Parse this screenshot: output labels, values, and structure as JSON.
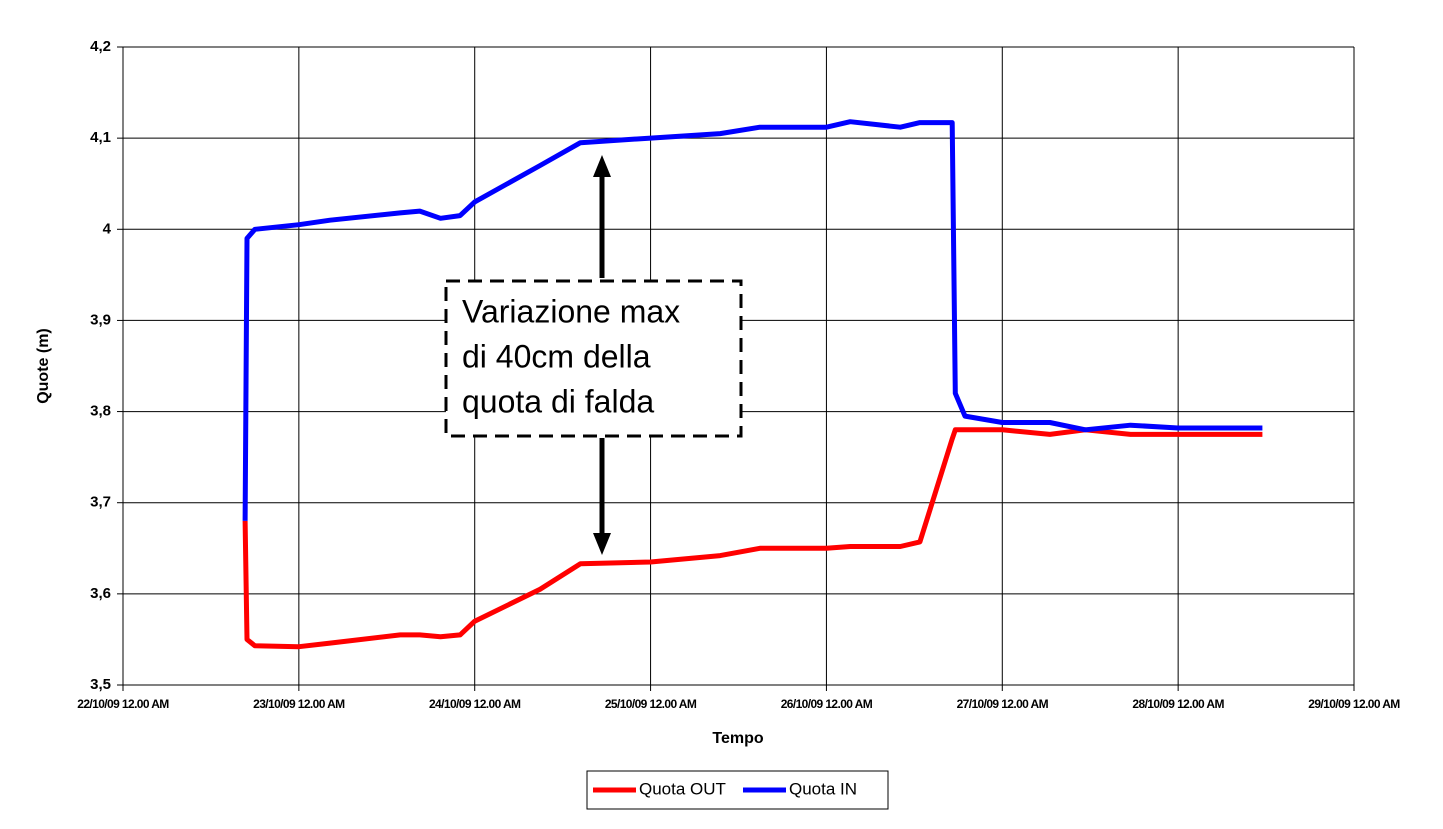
{
  "chart_data": {
    "type": "line",
    "x_label": "Tempo",
    "y_label": "Quote (m)",
    "annotation": [
      "Variazione max",
      "di 40cm della",
      "quota di falda"
    ],
    "x": [
      "2009-10-22T16:40",
      "2009-10-22T16:55",
      "2009-10-22T18:00",
      "2009-10-23T00:00",
      "2009-10-23T04:15",
      "2009-10-23T13:50",
      "2009-10-23T16:30",
      "2009-10-23T19:20",
      "2009-10-23T22:00",
      "2009-10-24T00:00",
      "2009-10-24T08:55",
      "2009-10-24T14:25",
      "2009-10-25T00:00",
      "2009-10-25T09:30",
      "2009-10-25T14:55",
      "2009-10-26T00:00",
      "2009-10-26T03:15",
      "2009-10-26T10:05",
      "2009-10-26T12:45",
      "2009-10-26T17:10",
      "2009-10-26T17:35",
      "2009-10-26T18:55",
      "2009-10-27T00:00",
      "2009-10-27T06:30",
      "2009-10-27T11:20",
      "2009-10-27T17:30",
      "2009-10-28T00:00",
      "2009-10-28T11:30"
    ],
    "series": [
      {
        "name": "Quota OUT",
        "color": "#ff0000",
        "values": [
          3.68,
          3.55,
          3.543,
          3.542,
          3.546,
          3.555,
          3.555,
          3.553,
          3.555,
          3.57,
          3.605,
          3.633,
          3.635,
          3.642,
          3.65,
          3.65,
          3.652,
          3.652,
          3.657,
          3.77,
          3.78,
          3.78,
          3.78,
          3.775,
          3.78,
          3.775,
          3.775,
          3.775
        ]
      },
      {
        "name": "Quota IN",
        "color": "#0000ff",
        "values": [
          3.68,
          3.99,
          4.0,
          4.005,
          4.01,
          4.018,
          4.02,
          4.012,
          4.015,
          4.03,
          4.07,
          4.095,
          4.1,
          4.105,
          4.112,
          4.112,
          4.118,
          4.112,
          4.117,
          4.117,
          3.82,
          3.795,
          3.788,
          3.788,
          3.78,
          3.785,
          3.782,
          3.782
        ]
      }
    ],
    "xlim": [
      "2009-10-22T00:00",
      "2009-10-29T00:00"
    ],
    "xticks": [
      {
        "value": "2009-10-22T00:00",
        "label": "22/10/09 12.00 AM"
      },
      {
        "value": "2009-10-23T00:00",
        "label": "23/10/09 12.00 AM"
      },
      {
        "value": "2009-10-24T00:00",
        "label": "24/10/09 12.00 AM"
      },
      {
        "value": "2009-10-25T00:00",
        "label": "25/10/09 12.00 AM"
      },
      {
        "value": "2009-10-26T00:00",
        "label": "26/10/09 12.00 AM"
      },
      {
        "value": "2009-10-27T00:00",
        "label": "27/10/09 12.00 AM"
      },
      {
        "value": "2009-10-28T00:00",
        "label": "28/10/09 12.00 AM"
      },
      {
        "value": "2009-10-29T00:00",
        "label": "29/10/09 12.00 AM"
      }
    ],
    "ylim": [
      3.5,
      4.2
    ],
    "yticks": [
      {
        "value": 3.5,
        "label": "3,5"
      },
      {
        "value": 3.6,
        "label": "3,6"
      },
      {
        "value": 3.7,
        "label": "3,7"
      },
      {
        "value": 3.8,
        "label": "3,8"
      },
      {
        "value": 3.9,
        "label": "3,9"
      },
      4,
      {
        "value": 4.1,
        "label": "4,1"
      },
      {
        "value": 4.2,
        "label": "4,2"
      }
    ],
    "grid": true,
    "legend": "bottom"
  }
}
